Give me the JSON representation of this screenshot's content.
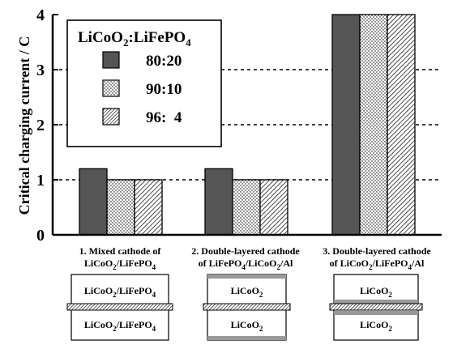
{
  "chart_data": {
    "type": "bar",
    "ylabel": "Critical charging current / C",
    "ylim": [
      0,
      4
    ],
    "yticks": [
      "0",
      "1",
      "2",
      "3",
      "4"
    ],
    "grid": "horizontal-dashed",
    "legend_placement": "top-left",
    "legend_title": {
      "main": "LiCoO",
      "s1": "2",
      "mid": ":LiFePO",
      "s2": "4"
    },
    "categories": [
      {
        "line1": "1. Mixed cathode of",
        "line2": {
          "a": "LiCoO",
          "s1": "2",
          "b": "/LiFePO",
          "s2": "4",
          "c": ""
        }
      },
      {
        "line1": "2. Double-layered cathode",
        "line2": {
          "a": "of LiFePO",
          "s1": "4",
          "b": "/LiCoO",
          "s2": "2",
          "c": "/Al"
        }
      },
      {
        "line1": "3. Double-layered cathode",
        "line2": {
          "a": "of LiCoO",
          "s1": "2",
          "b": "/LiFePO",
          "s2": "4",
          "c": "/Al"
        }
      }
    ],
    "series": [
      {
        "name": "80:20",
        "pattern": "solid",
        "color": "#555555",
        "values": [
          1.2,
          1.2,
          4.0
        ]
      },
      {
        "name": "90:10",
        "pattern": "dots",
        "color": "#ffffff",
        "values": [
          1.0,
          1.0,
          4.0
        ]
      },
      {
        "name": "96:  4",
        "pattern": "diagonal",
        "color": "#ffffff",
        "values": [
          1.0,
          1.0,
          4.0
        ]
      }
    ]
  },
  "schematics": [
    {
      "top_layer": {
        "a": "LiCoO",
        "s1": "2",
        "b": "/LiFePO",
        "s2": "4"
      },
      "bottom_layer": {
        "a": "LiCoO",
        "s1": "2",
        "b": "/LiFePO",
        "s2": "4"
      }
    },
    {
      "top_layer": {
        "a": "LiCoO",
        "s1": "2",
        "b": "",
        "s2": ""
      },
      "bottom_layer": {
        "a": "LiCoO",
        "s1": "2",
        "b": "",
        "s2": ""
      }
    },
    {
      "top_layer": {
        "a": "LiCoO",
        "s1": "2",
        "b": "",
        "s2": ""
      },
      "bottom_layer": {
        "a": "LiCoO",
        "s1": "2",
        "b": "",
        "s2": ""
      }
    }
  ],
  "colors": {
    "ink": "#000000",
    "bar_dark": "#555555",
    "schem_gray": "#999999"
  }
}
